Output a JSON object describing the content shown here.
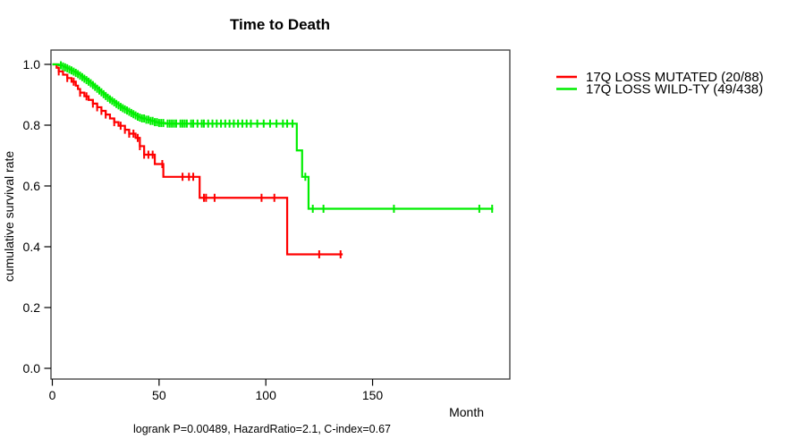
{
  "axes": {
    "x": {
      "label": "Month",
      "tick_labels": [
        "0",
        "50",
        "100",
        "150"
      ]
    },
    "y": {
      "label": "cumulative survival rate",
      "tick_labels": [
        "1.0",
        "0.8",
        "0.6",
        "0.4",
        "0.2",
        "0.0"
      ]
    }
  },
  "chart_data": {
    "type": "line",
    "variant": "kaplan_meier_step_curve",
    "title": "Time to Death",
    "xlabel": "Month",
    "ylabel": "cumulative survival rate",
    "caption": "logrank P=0.00489, HazardRatio=2.1, C-index=0.67",
    "xlim": [
      0,
      214
    ],
    "ylim": [
      0.0,
      1.0
    ],
    "x_ticks": [
      0,
      50,
      100,
      150
    ],
    "y_ticks": [
      0.0,
      0.2,
      0.4,
      0.6,
      0.8,
      1.0
    ],
    "grid": false,
    "legend_position": "right-outside",
    "series": [
      {
        "id": "mutated",
        "name": "17Q LOSS MUTATED (20/88)",
        "color": "#ff0000",
        "steps": [
          [
            0,
            1.0
          ],
          [
            2,
            0.989
          ],
          [
            3,
            0.977
          ],
          [
            5,
            0.966
          ],
          [
            7,
            0.955
          ],
          [
            9,
            0.943
          ],
          [
            11,
            0.93
          ],
          [
            12,
            0.919
          ],
          [
            13,
            0.907
          ],
          [
            15,
            0.895
          ],
          [
            17,
            0.883
          ],
          [
            19,
            0.871
          ],
          [
            21,
            0.859
          ],
          [
            23,
            0.847
          ],
          [
            25,
            0.835
          ],
          [
            27,
            0.822
          ],
          [
            29,
            0.81
          ],
          [
            31,
            0.798
          ],
          [
            34,
            0.785
          ],
          [
            36,
            0.772
          ],
          [
            39,
            0.758
          ],
          [
            41,
            0.731
          ],
          [
            43,
            0.703
          ],
          [
            48,
            0.672
          ],
          [
            52,
            0.63
          ],
          [
            69,
            0.561
          ],
          [
            110,
            0.375
          ]
        ],
        "end": 136,
        "censors": [
          3,
          7,
          10,
          13,
          16,
          19,
          21,
          23,
          25,
          29,
          32,
          34,
          36,
          38,
          40,
          41,
          43,
          45,
          47,
          51.5,
          61,
          64,
          66,
          71,
          72,
          76,
          98,
          104,
          125,
          135
        ]
      },
      {
        "id": "wildtype",
        "name": "17Q LOSS WILD-TY (49/438)",
        "color": "#00ee00",
        "steps": [
          [
            0,
            1.0
          ],
          [
            3,
            0.997
          ],
          [
            5,
            0.993
          ],
          [
            6,
            0.99
          ],
          [
            7,
            0.987
          ],
          [
            8,
            0.983
          ],
          [
            9,
            0.98
          ],
          [
            10,
            0.976
          ],
          [
            11,
            0.972
          ],
          [
            12,
            0.968
          ],
          [
            13,
            0.963
          ],
          [
            14,
            0.958
          ],
          [
            15,
            0.953
          ],
          [
            16,
            0.948
          ],
          [
            17,
            0.943
          ],
          [
            18,
            0.938
          ],
          [
            19,
            0.932
          ],
          [
            20,
            0.926
          ],
          [
            21,
            0.92
          ],
          [
            22,
            0.914
          ],
          [
            23,
            0.908
          ],
          [
            24,
            0.902
          ],
          [
            25,
            0.896
          ],
          [
            26,
            0.89
          ],
          [
            27,
            0.885
          ],
          [
            28,
            0.88
          ],
          [
            29,
            0.875
          ],
          [
            30,
            0.87
          ],
          [
            31,
            0.865
          ],
          [
            32,
            0.86
          ],
          [
            33,
            0.856
          ],
          [
            34,
            0.852
          ],
          [
            35,
            0.848
          ],
          [
            36,
            0.844
          ],
          [
            37,
            0.84
          ],
          [
            38,
            0.836
          ],
          [
            39,
            0.832
          ],
          [
            40,
            0.828
          ],
          [
            41,
            0.825
          ],
          [
            42,
            0.822
          ],
          [
            44,
            0.818
          ],
          [
            46,
            0.814
          ],
          [
            48,
            0.81
          ],
          [
            50,
            0.807
          ],
          [
            53,
            0.805
          ],
          [
            114.5,
            0.717
          ],
          [
            117,
            0.63
          ],
          [
            120,
            0.525
          ]
        ],
        "end": 206.5,
        "censors": [
          4,
          5,
          6,
          7,
          8,
          9,
          10,
          11,
          12,
          13,
          14,
          15,
          16,
          17,
          18,
          19,
          20,
          21,
          22,
          23,
          24,
          25,
          26,
          27,
          28,
          29,
          30,
          31,
          32,
          33,
          34,
          35,
          36,
          37,
          38,
          39,
          40,
          41,
          42,
          43,
          44,
          45,
          46,
          47,
          48,
          49,
          50,
          51,
          52,
          54,
          55,
          56,
          57,
          58,
          60,
          61,
          62,
          63,
          65,
          66,
          68,
          70,
          71,
          73,
          75,
          77,
          79,
          81,
          83,
          85,
          87,
          89,
          91,
          93,
          96,
          99,
          102,
          105,
          108,
          110,
          112.5,
          118.5,
          122,
          127,
          160,
          200,
          206
        ]
      }
    ]
  }
}
